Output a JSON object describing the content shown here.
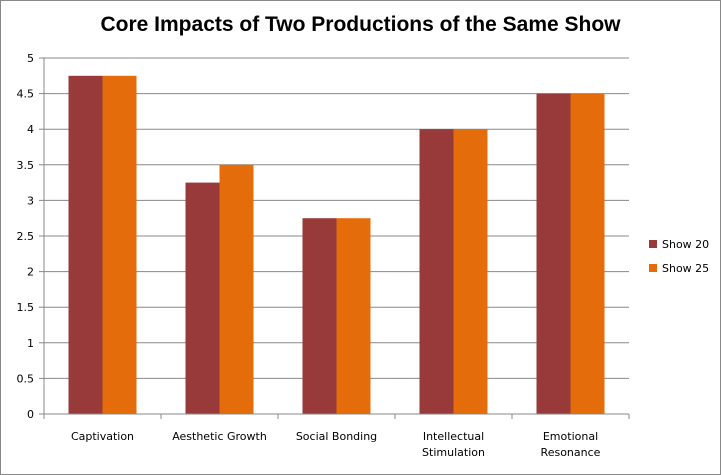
{
  "chart_data": {
    "type": "bar",
    "title": "Core Impacts of Two Productions of the Same Show",
    "xlabel": "",
    "ylabel": "",
    "ylim": [
      0,
      5
    ],
    "yticks": [
      "0",
      "0.5",
      "1",
      "1.5",
      "2",
      "2.5",
      "3",
      "3.5",
      "4",
      "4.5",
      "5"
    ],
    "grid": true,
    "legend_position": "right",
    "categories": [
      [
        "Captivation"
      ],
      [
        "Aesthetic Growth"
      ],
      [
        "Social Bonding"
      ],
      [
        "Intellectual",
        "Stimulation"
      ],
      [
        "Emotional",
        "Resonance"
      ]
    ],
    "series": [
      {
        "name": "Show 20",
        "color": "#983a3a",
        "values": [
          4.75,
          3.25,
          2.75,
          4.0,
          4.5
        ]
      },
      {
        "name": "Show 25",
        "color": "#e46c0a",
        "values": [
          4.75,
          3.5,
          2.75,
          4.0,
          4.5
        ]
      }
    ]
  }
}
